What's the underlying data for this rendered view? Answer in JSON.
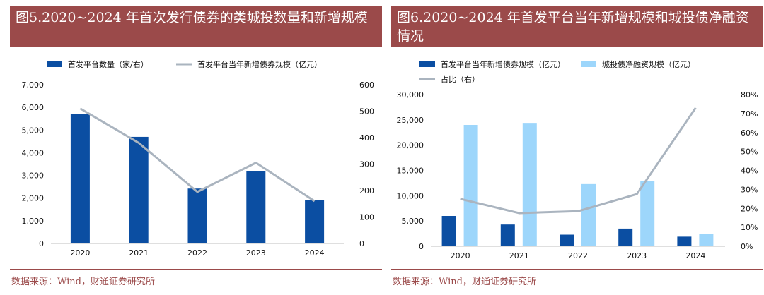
{
  "chart_data": [
    {
      "type": "bar",
      "title": "图5.2020~2024 年首次发行债券的类城投数量和新增规模",
      "categories": [
        "2020",
        "2021",
        "2022",
        "2023",
        "2024"
      ],
      "series": [
        {
          "name": "首发平台数量（家/右）",
          "kind": "bar",
          "axis": "left",
          "color": "#0b4ea2",
          "values": [
            5720,
            4700,
            2420,
            3180,
            1920
          ]
        },
        {
          "name": "首发平台当年新增债券规模（亿元）",
          "kind": "line",
          "axis": "right",
          "color": "#aab4bf",
          "values": [
            510,
            380,
            195,
            305,
            160
          ]
        }
      ],
      "ylim": [
        0,
        7000
      ],
      "yticks": [
        "0",
        "1,000",
        "2,000",
        "3,000",
        "4,000",
        "5,000",
        "6,000",
        "7,000"
      ],
      "y2lim": [
        0,
        600
      ],
      "y2ticks": [
        "0",
        "100",
        "200",
        "300",
        "400",
        "500",
        "600"
      ],
      "legend": "top",
      "source": "数据来源：Wind，财通证券研究所"
    },
    {
      "type": "bar",
      "title": "图6.2020~2024 年首发平台当年新增规模和城投债净融资情况",
      "categories": [
        "2020",
        "2021",
        "2022",
        "2023",
        "2024"
      ],
      "series": [
        {
          "name": "首发平台当年新增债券规模（亿元）",
          "kind": "bar",
          "axis": "left",
          "color": "#0b4ea2",
          "values": [
            6000,
            4300,
            2300,
            3500,
            1900
          ]
        },
        {
          "name": "城投债净融资规模（亿元）",
          "kind": "bar",
          "axis": "left",
          "color": "#9dd6fb",
          "values": [
            24000,
            24400,
            12300,
            12900,
            2500
          ]
        },
        {
          "name": "占比（右）",
          "kind": "line",
          "axis": "right",
          "color": "#aab4bf",
          "values": [
            25,
            17.5,
            18.5,
            27.5,
            73
          ]
        }
      ],
      "ylim": [
        0,
        30000
      ],
      "yticks": [
        "0",
        "5,000",
        "10,000",
        "15,000",
        "20,000",
        "25,000",
        "30,000"
      ],
      "y2lim": [
        0,
        80
      ],
      "y2ticks": [
        "0%",
        "10%",
        "20%",
        "30%",
        "40%",
        "50%",
        "60%",
        "70%",
        "80%"
      ],
      "legend": "top",
      "source": "数据来源：Wind，财通证券研究所"
    }
  ]
}
